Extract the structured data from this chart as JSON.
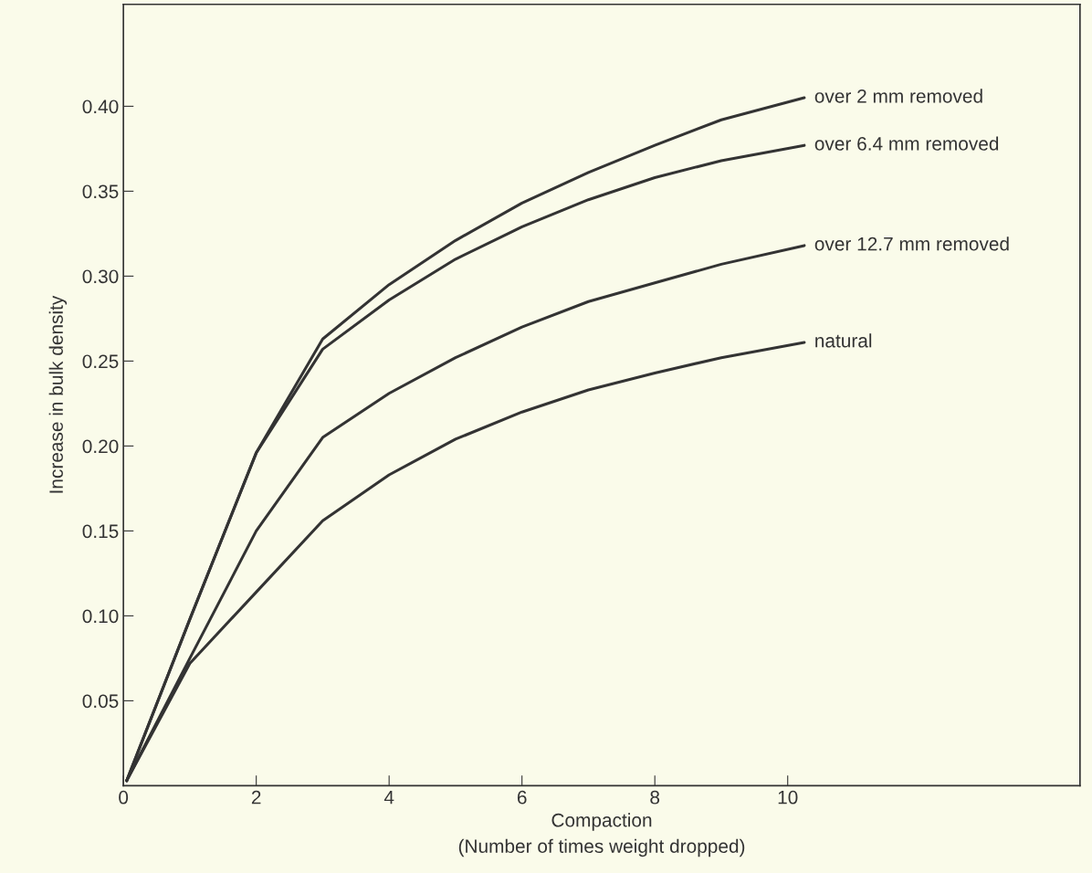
{
  "chart_data": {
    "type": "line",
    "xlabel": "Compaction\n(Number of times weight dropped)",
    "ylabel": "Increase in bulk density",
    "x": [
      0.05,
      1,
      2,
      3,
      4,
      5,
      6,
      7,
      8,
      9,
      10.25
    ],
    "series": [
      {
        "name": "over 2 mm removed",
        "color": "#333333",
        "values": [
          0.003,
          0.098,
          0.196,
          0.263,
          0.295,
          0.321,
          0.343,
          0.361,
          0.377,
          0.392,
          0.405
        ]
      },
      {
        "name": "over 6.4 mm removed",
        "color": "#333333",
        "values": [
          0.003,
          0.098,
          0.196,
          0.257,
          0.286,
          0.31,
          0.329,
          0.345,
          0.358,
          0.368,
          0.377
        ]
      },
      {
        "name": "over 12.7 mm removed",
        "color": "#333333",
        "values": [
          0.003,
          0.075,
          0.15,
          0.205,
          0.231,
          0.252,
          0.27,
          0.285,
          0.296,
          0.307,
          0.318
        ]
      },
      {
        "name": "natural",
        "color": "#333333",
        "values": [
          0.003,
          0.072,
          0.114,
          0.156,
          0.183,
          0.204,
          0.22,
          0.233,
          0.243,
          0.252,
          0.261
        ]
      }
    ],
    "xlim": [
      0,
      14.4
    ],
    "xticks": [
      0,
      2,
      4,
      6,
      8,
      10
    ],
    "ylim": [
      0,
      0.46
    ],
    "yticks": [
      0.05,
      {
        "value": 0.1,
        "label": "0.10"
      },
      0.15,
      {
        "value": 0.2,
        "label": "0.20"
      },
      0.25,
      {
        "value": 0.3,
        "label": "0.30"
      },
      0.35,
      {
        "value": 0.4,
        "label": "0.40"
      }
    ],
    "grid": false,
    "legend": false,
    "marker": "none",
    "line_style": "solid"
  }
}
